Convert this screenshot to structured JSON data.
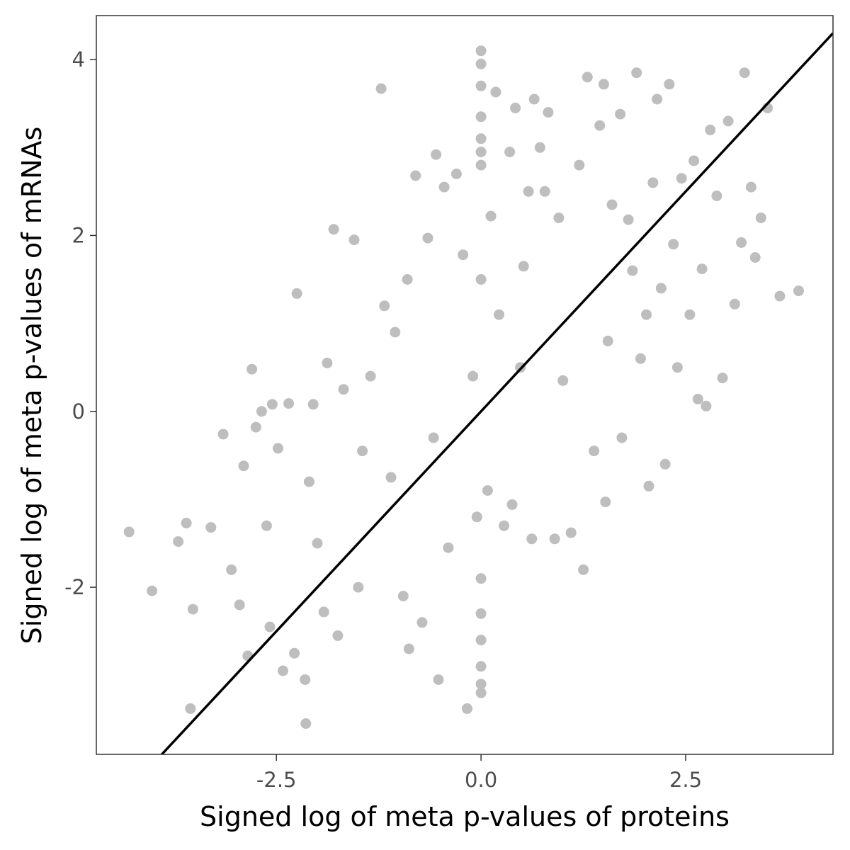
{
  "chart_data": {
    "type": "scatter",
    "title": "",
    "xlabel": "Signed log of meta p-values of proteins",
    "ylabel": "Signed log of meta p-values of mRNAs",
    "xlim": [
      -4.7,
      4.3
    ],
    "ylim": [
      -3.9,
      4.5
    ],
    "x_ticks": [
      -2.5,
      0.0,
      2.5
    ],
    "x_tick_labels": [
      "-2.5",
      "0.0",
      "2.5"
    ],
    "y_ticks": [
      -2,
      0,
      2,
      4
    ],
    "y_tick_labels": [
      "-2",
      "0",
      "2",
      "4"
    ],
    "grid": false,
    "legend": "none",
    "point_color": "#bebebe",
    "line_color": "#000000",
    "reference_line": {
      "slope": 1,
      "intercept": 0
    },
    "series": [
      {
        "points": [
          [
            -4.3,
            -1.37
          ],
          [
            -4.02,
            -2.04
          ],
          [
            -3.7,
            -1.48
          ],
          [
            -3.6,
            -1.27
          ],
          [
            -3.55,
            -3.38
          ],
          [
            -3.52,
            -2.25
          ],
          [
            -3.3,
            -1.32
          ],
          [
            -3.15,
            -0.26
          ],
          [
            -3.05,
            -1.8
          ],
          [
            -2.95,
            -2.2
          ],
          [
            -2.9,
            -0.62
          ],
          [
            -2.85,
            -2.78
          ],
          [
            -2.8,
            0.48
          ],
          [
            -2.75,
            -0.18
          ],
          [
            -2.68,
            0.0
          ],
          [
            -2.62,
            -1.3
          ],
          [
            -2.58,
            -2.45
          ],
          [
            -2.55,
            0.08
          ],
          [
            -2.48,
            -0.42
          ],
          [
            -2.42,
            -2.95
          ],
          [
            -2.35,
            0.09
          ],
          [
            -2.28,
            -2.75
          ],
          [
            -2.25,
            1.34
          ],
          [
            -2.15,
            -3.05
          ],
          [
            -2.14,
            -3.55
          ],
          [
            -2.1,
            -0.8
          ],
          [
            -2.05,
            0.08
          ],
          [
            -2.0,
            -1.5
          ],
          [
            -1.92,
            -2.28
          ],
          [
            -1.88,
            0.55
          ],
          [
            -1.8,
            2.07
          ],
          [
            -1.75,
            -2.55
          ],
          [
            -1.68,
            0.25
          ],
          [
            -1.55,
            1.95
          ],
          [
            -1.5,
            -2.0
          ],
          [
            -1.45,
            -0.45
          ],
          [
            -1.35,
            0.4
          ],
          [
            -1.22,
            3.67
          ],
          [
            -1.18,
            1.2
          ],
          [
            -1.1,
            -0.75
          ],
          [
            -1.05,
            0.9
          ],
          [
            -0.95,
            -2.1
          ],
          [
            -0.9,
            1.5
          ],
          [
            -0.88,
            -2.7
          ],
          [
            -0.8,
            2.68
          ],
          [
            -0.72,
            -2.4
          ],
          [
            -0.65,
            1.97
          ],
          [
            -0.58,
            -0.3
          ],
          [
            -0.55,
            2.92
          ],
          [
            -0.52,
            -3.05
          ],
          [
            -0.45,
            2.55
          ],
          [
            -0.4,
            -1.55
          ],
          [
            -0.3,
            2.7
          ],
          [
            -0.22,
            1.78
          ],
          [
            -0.17,
            -3.38
          ],
          [
            -0.1,
            0.4
          ],
          [
            -0.05,
            -1.2
          ],
          [
            0.0,
            4.1
          ],
          [
            0.0,
            3.95
          ],
          [
            0.0,
            3.7
          ],
          [
            0.0,
            3.35
          ],
          [
            0.0,
            3.1
          ],
          [
            0.0,
            2.95
          ],
          [
            0.0,
            2.8
          ],
          [
            0.0,
            1.5
          ],
          [
            0.0,
            -1.9
          ],
          [
            0.0,
            -2.3
          ],
          [
            0.0,
            -2.6
          ],
          [
            0.0,
            -2.9
          ],
          [
            0.0,
            -3.1
          ],
          [
            0.0,
            -3.2
          ],
          [
            0.08,
            -0.9
          ],
          [
            0.12,
            2.22
          ],
          [
            0.18,
            3.63
          ],
          [
            0.22,
            1.1
          ],
          [
            0.28,
            -1.3
          ],
          [
            0.35,
            2.95
          ],
          [
            0.38,
            -1.06
          ],
          [
            0.42,
            3.45
          ],
          [
            0.48,
            0.5
          ],
          [
            0.52,
            1.65
          ],
          [
            0.58,
            2.5
          ],
          [
            0.62,
            -1.45
          ],
          [
            0.65,
            3.55
          ],
          [
            0.72,
            3.0
          ],
          [
            0.78,
            2.5
          ],
          [
            0.82,
            3.4
          ],
          [
            0.9,
            -1.45
          ],
          [
            0.95,
            2.2
          ],
          [
            1.0,
            0.35
          ],
          [
            1.1,
            -1.38
          ],
          [
            1.2,
            2.8
          ],
          [
            1.25,
            -1.8
          ],
          [
            1.3,
            3.8
          ],
          [
            1.38,
            -0.45
          ],
          [
            1.45,
            3.25
          ],
          [
            1.5,
            3.72
          ],
          [
            1.52,
            -1.03
          ],
          [
            1.55,
            0.8
          ],
          [
            1.6,
            2.35
          ],
          [
            1.7,
            3.38
          ],
          [
            1.72,
            -0.3
          ],
          [
            1.8,
            2.18
          ],
          [
            1.85,
            1.6
          ],
          [
            1.9,
            3.85
          ],
          [
            1.95,
            0.6
          ],
          [
            2.02,
            1.1
          ],
          [
            2.05,
            -0.85
          ],
          [
            2.1,
            2.6
          ],
          [
            2.15,
            3.55
          ],
          [
            2.2,
            1.4
          ],
          [
            2.25,
            -0.6
          ],
          [
            2.3,
            3.72
          ],
          [
            2.35,
            1.9
          ],
          [
            2.4,
            0.5
          ],
          [
            2.45,
            2.65
          ],
          [
            2.55,
            1.1
          ],
          [
            2.6,
            2.85
          ],
          [
            2.65,
            0.14
          ],
          [
            2.7,
            1.62
          ],
          [
            2.75,
            0.06
          ],
          [
            2.8,
            3.2
          ],
          [
            2.88,
            2.45
          ],
          [
            2.95,
            0.38
          ],
          [
            3.02,
            3.3
          ],
          [
            3.1,
            1.22
          ],
          [
            3.18,
            1.92
          ],
          [
            3.22,
            3.85
          ],
          [
            3.3,
            2.55
          ],
          [
            3.35,
            1.75
          ],
          [
            3.42,
            2.2
          ],
          [
            3.5,
            3.45
          ],
          [
            3.65,
            1.31
          ],
          [
            3.88,
            1.37
          ]
        ]
      }
    ]
  }
}
